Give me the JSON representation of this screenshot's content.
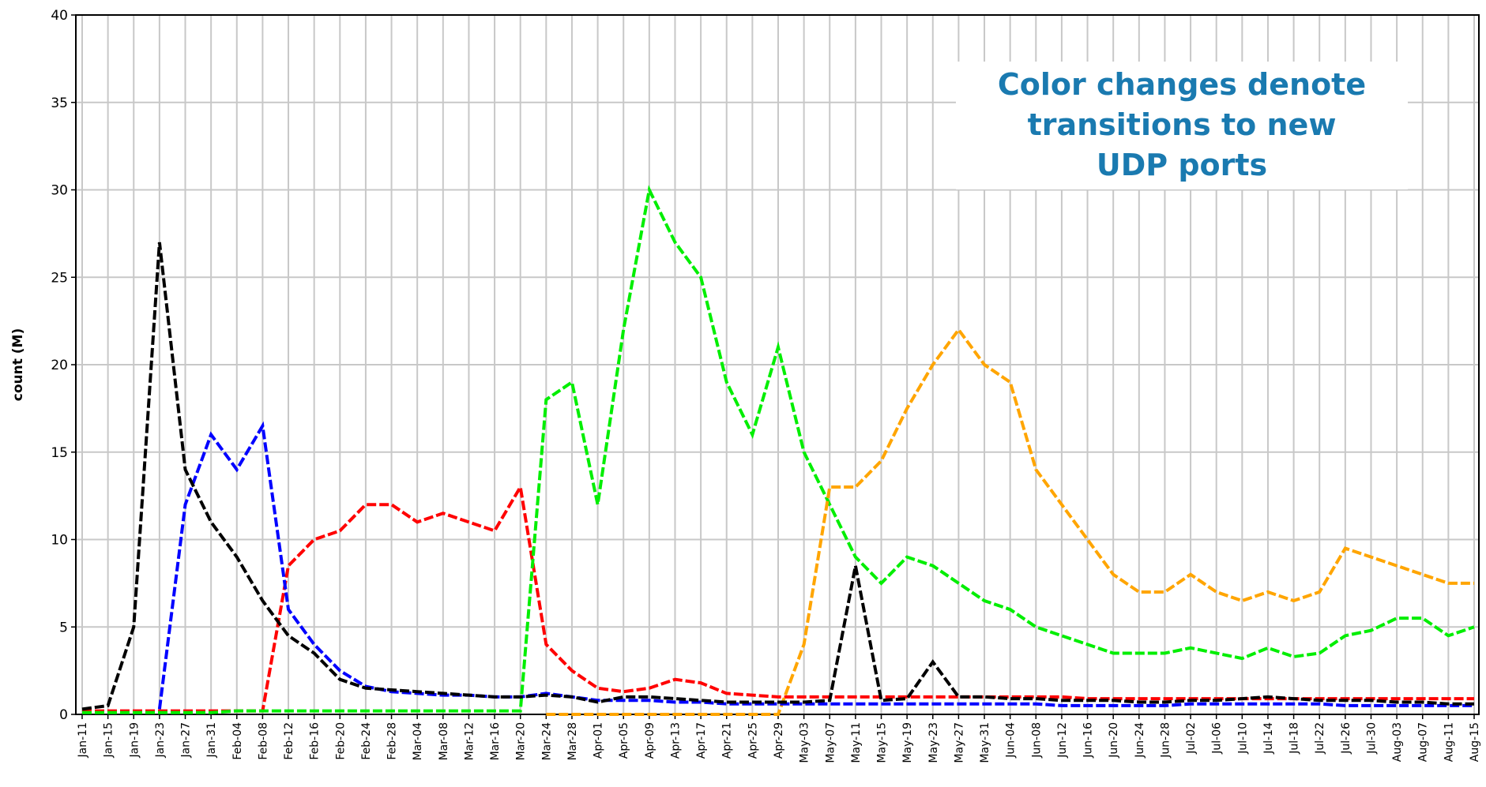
{
  "chart_data": {
    "type": "line",
    "y_label": "count (M)",
    "annotation": [
      "Color changes denote",
      "transitions to new",
      "UDP ports"
    ],
    "categories": [
      "Jan-11",
      "Jan-15",
      "Jan-19",
      "Jan-23",
      "Jan-27",
      "Jan-31",
      "Feb-04",
      "Feb-08",
      "Feb-12",
      "Feb-16",
      "Feb-20",
      "Feb-24",
      "Feb-28",
      "Mar-04",
      "Mar-08",
      "Mar-12",
      "Mar-16",
      "Mar-20",
      "Mar-24",
      "Mar-28",
      "Apr-01",
      "Apr-05",
      "Apr-09",
      "Apr-13",
      "Apr-17",
      "Apr-21",
      "Apr-25",
      "Apr-29",
      "May-03",
      "May-07",
      "May-11",
      "May-15",
      "May-19",
      "May-23",
      "May-27",
      "May-31",
      "Jun-04",
      "Jun-08",
      "Jun-12",
      "Jun-16",
      "Jun-20",
      "Jun-24",
      "Jun-28",
      "Jul-02",
      "Jul-06",
      "Jul-10",
      "Jul-14",
      "Jul-18",
      "Jul-22",
      "Jul-26",
      "Jul-30",
      "Aug-03",
      "Aug-07",
      "Aug-11",
      "Aug-15"
    ],
    "series": [
      {
        "color": "#ff0000",
        "values": [
          0.2,
          0.2,
          0.2,
          0.2,
          0.2,
          0.2,
          0.2,
          0.2,
          8.5,
          10,
          10.5,
          12,
          12,
          11,
          11.5,
          11,
          10.5,
          13,
          4,
          2.5,
          1.5,
          1.3,
          1.5,
          2,
          1.8,
          1.2,
          1.1,
          1,
          1,
          1,
          1,
          1,
          1,
          1,
          1,
          1,
          1,
          1,
          1,
          0.9,
          0.9,
          0.9,
          0.9,
          0.9,
          0.9,
          0.9,
          0.9,
          0.9,
          0.9,
          0.9,
          0.9,
          0.9,
          0.9,
          0.9,
          0.9
        ]
      },
      {
        "color": "#00ee00",
        "values": [
          0.1,
          0.1,
          0.1,
          0.1,
          0.1,
          0.1,
          0.2,
          0.2,
          0.2,
          0.2,
          0.2,
          0.2,
          0.2,
          0.2,
          0.2,
          0.2,
          0.2,
          0.2,
          18,
          19,
          12,
          22,
          30,
          27,
          25,
          19,
          16,
          21,
          15,
          12,
          9,
          7.5,
          9,
          8.5,
          7.5,
          6.5,
          6,
          5,
          4.5,
          4,
          3.5,
          3.5,
          3.5,
          3.8,
          3.5,
          3.2,
          3.8,
          3.3,
          3.5,
          4.5,
          4.8,
          5.5,
          5.5,
          4.5,
          5
        ]
      },
      {
        "color": "#ffa500",
        "values": [
          null,
          null,
          null,
          null,
          null,
          null,
          null,
          null,
          null,
          null,
          null,
          null,
          null,
          null,
          null,
          null,
          null,
          null,
          0,
          0,
          0,
          0,
          0,
          0,
          0,
          0,
          0,
          0,
          4,
          13,
          13,
          14.5,
          17.5,
          20,
          22,
          20,
          19,
          14,
          12,
          10,
          8,
          7,
          7,
          8,
          7,
          6.5,
          7,
          6.5,
          7,
          9.5,
          9,
          8.5,
          8,
          7.5,
          7.5
        ]
      },
      {
        "color": "#0000ff",
        "values": [
          null,
          null,
          null,
          0.3,
          12,
          16,
          14,
          16.5,
          6,
          4,
          2.5,
          1.6,
          1.3,
          1.2,
          1.1,
          1.1,
          1,
          1,
          1.2,
          1,
          0.8,
          0.8,
          0.8,
          0.7,
          0.7,
          0.6,
          0.6,
          0.6,
          0.6,
          0.6,
          0.6,
          0.6,
          0.6,
          0.6,
          0.6,
          0.6,
          0.6,
          0.6,
          0.5,
          0.5,
          0.5,
          0.5,
          0.5,
          0.6,
          0.6,
          0.6,
          0.6,
          0.6,
          0.6,
          0.5,
          0.5,
          0.5,
          0.5,
          0.5,
          0.5
        ]
      },
      {
        "color": "#000000",
        "values": [
          0.3,
          0.5,
          5,
          27,
          14,
          11,
          9,
          6.5,
          4.5,
          3.5,
          2,
          1.5,
          1.4,
          1.3,
          1.2,
          1.1,
          1,
          1,
          1.1,
          1,
          0.7,
          1,
          1,
          0.9,
          0.8,
          0.7,
          0.7,
          0.7,
          0.7,
          0.8,
          8.5,
          0.8,
          0.9,
          3,
          1,
          1,
          0.9,
          0.9,
          0.8,
          0.8,
          0.8,
          0.7,
          0.7,
          0.8,
          0.8,
          0.9,
          1,
          0.9,
          0.8,
          0.8,
          0.8,
          0.7,
          0.7,
          0.6,
          0.6
        ]
      }
    ],
    "ylim": [
      0,
      40
    ],
    "yticks": [
      0,
      5,
      10,
      15,
      20,
      25,
      30,
      35,
      40
    ],
    "grid": true
  }
}
